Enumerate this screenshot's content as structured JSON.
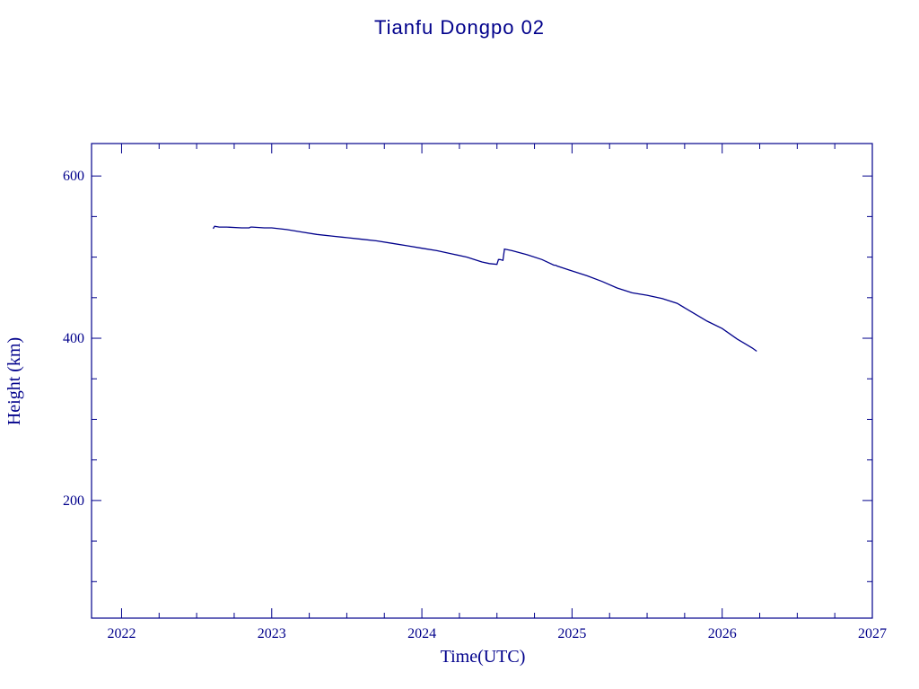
{
  "chart_data": {
    "type": "line",
    "title": "Tianfu Dongpo 02",
    "xlabel": "Time(UTC)",
    "ylabel": "Height (km)",
    "xlim": [
      2021.8,
      2027.0
    ],
    "ylim": [
      55,
      640
    ],
    "x_ticks": [
      2022,
      2023,
      2024,
      2025,
      2026,
      2027
    ],
    "x_tick_labels": [
      "2022",
      "2023",
      "2024",
      "2025",
      "2026",
      "2027"
    ],
    "y_ticks": [
      200,
      400,
      600
    ],
    "y_tick_labels": [
      "200",
      "400",
      "600"
    ],
    "color": "#00008b",
    "grid": false,
    "series": [
      {
        "x": [
          2022.61,
          2022.62,
          2022.65,
          2022.7,
          2022.8,
          2022.85,
          2022.86,
          2022.87,
          2022.95,
          2023.0,
          2023.1,
          2023.2,
          2023.3,
          2023.4,
          2023.5,
          2023.6,
          2023.7,
          2023.8,
          2023.9,
          2024.0,
          2024.1,
          2024.2,
          2024.3,
          2024.4,
          2024.45,
          2024.5,
          2024.51,
          2024.52,
          2024.54,
          2024.55,
          2024.6,
          2024.7,
          2024.8,
          2024.88,
          2024.89,
          2024.9,
          2025.0,
          2025.1,
          2025.2,
          2025.3,
          2025.4,
          2025.5,
          2025.6,
          2025.7,
          2025.8,
          2025.9,
          2026.0,
          2026.1,
          2026.2,
          2026.23
        ],
        "y": [
          535,
          538,
          537,
          537,
          536,
          536,
          537,
          537,
          536,
          536,
          534,
          531,
          528,
          526,
          524,
          522,
          520,
          517,
          514,
          511,
          508,
          504,
          500,
          494,
          492,
          491,
          497,
          497,
          496,
          510,
          508,
          503,
          497,
          490,
          490,
          489,
          483,
          477,
          470,
          462,
          456,
          453,
          449,
          443,
          432,
          421,
          412,
          399,
          388,
          384
        ]
      }
    ]
  }
}
